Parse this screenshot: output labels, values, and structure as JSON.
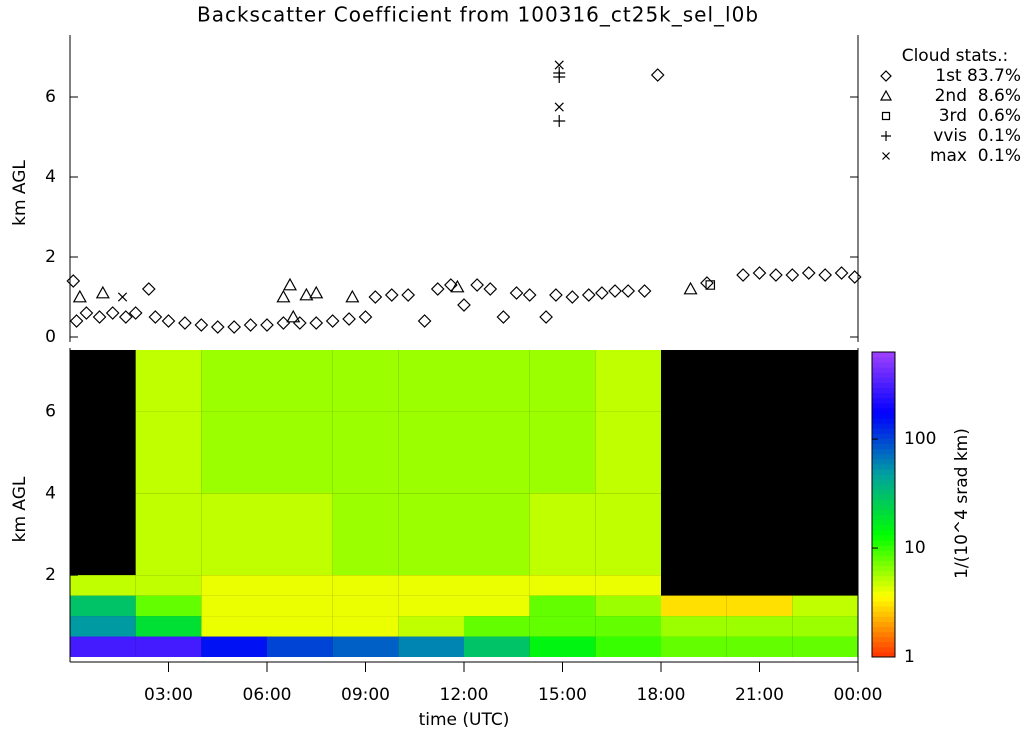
{
  "title": "Backscatter Coefficient from 100316_ct25k_sel_l0b",
  "chart_data": [
    {
      "type": "scatter",
      "ylabel": "km AGL",
      "xlim": [
        0,
        24
      ],
      "ylim": [
        0,
        7.5
      ],
      "yticks": [
        0,
        2,
        4,
        6
      ],
      "legend_title": "Cloud stats.:",
      "legend": "right",
      "series": [
        {
          "name": "1st 83.7%",
          "marker": "diamond",
          "color": "#000000",
          "x": [
            0.1,
            0.2,
            0.5,
            0.9,
            1.3,
            1.7,
            2.0,
            2.4,
            2.6,
            3.0,
            3.5,
            4.0,
            4.5,
            5.0,
            5.5,
            6.0,
            6.5,
            7.0,
            7.5,
            8.0,
            8.5,
            9.0,
            9.3,
            9.8,
            10.3,
            10.8,
            11.2,
            11.6,
            12.0,
            12.4,
            12.8,
            13.2,
            13.6,
            14.0,
            14.5,
            14.8,
            15.3,
            15.8,
            16.2,
            16.6,
            17.0,
            17.5,
            17.9,
            19.4,
            20.5,
            21.0,
            21.5,
            22.0,
            22.5,
            23.0,
            23.5,
            23.9
          ],
          "y": [
            1.4,
            0.4,
            0.6,
            0.5,
            0.6,
            0.5,
            0.6,
            1.2,
            0.5,
            0.4,
            0.35,
            0.3,
            0.25,
            0.25,
            0.3,
            0.3,
            0.35,
            0.35,
            0.35,
            0.4,
            0.45,
            0.5,
            1.0,
            1.05,
            1.05,
            0.4,
            1.2,
            1.3,
            0.8,
            1.3,
            1.2,
            0.5,
            1.1,
            1.05,
            0.5,
            1.05,
            1.0,
            1.05,
            1.1,
            1.15,
            1.15,
            1.15,
            6.55,
            1.35,
            1.55,
            1.6,
            1.55,
            1.55,
            1.6,
            1.55,
            1.6,
            1.5
          ]
        },
        {
          "name": "2nd  8.6%",
          "marker": "triangle",
          "color": "#000000",
          "x": [
            0.3,
            1.0,
            6.5,
            6.7,
            6.8,
            7.2,
            7.5,
            8.6,
            11.8,
            18.9
          ],
          "y": [
            1.0,
            1.1,
            1.0,
            1.3,
            0.5,
            1.05,
            1.1,
            1.0,
            1.25,
            1.2
          ]
        },
        {
          "name": "3rd  0.6%",
          "marker": "square",
          "color": "#000000",
          "x": [
            19.5
          ],
          "y": [
            1.3
          ]
        },
        {
          "name": "vvis  0.1%",
          "marker": "plus",
          "color": "#000000",
          "x": [
            14.9,
            14.9,
            14.9
          ],
          "y": [
            6.6,
            6.5,
            5.4
          ]
        },
        {
          "name": "max  0.1%",
          "marker": "cross",
          "color": "#000000",
          "x": [
            14.9,
            14.9,
            1.6
          ],
          "y": [
            6.8,
            5.75,
            1.0
          ]
        }
      ]
    },
    {
      "type": "heatmap",
      "ylabel": "km AGL",
      "xlabel": "time (UTC)",
      "xlim": [
        0,
        24
      ],
      "ylim": [
        0,
        7.5
      ],
      "yticks": [
        2,
        4,
        6
      ],
      "xticks": [
        {
          "value": 3,
          "label": "03:00"
        },
        {
          "value": 6,
          "label": "06:00"
        },
        {
          "value": 9,
          "label": "09:00"
        },
        {
          "value": 12,
          "label": "12:00"
        },
        {
          "value": 15,
          "label": "15:00"
        },
        {
          "value": 18,
          "label": "18:00"
        },
        {
          "value": 21,
          "label": "21:00"
        },
        {
          "value": 24,
          "label": "00:00"
        }
      ],
      "x_bins": [
        0,
        2,
        4,
        6,
        8,
        10,
        12,
        14,
        16,
        18,
        20,
        22,
        24
      ],
      "y_bins": [
        0,
        0.5,
        1,
        1.5,
        2,
        4,
        6,
        7.5
      ],
      "z": [
        [
          300,
          300,
          150,
          100,
          80,
          60,
          30,
          15,
          10,
          8,
          8,
          8
        ],
        [
          50,
          20,
          4,
          4,
          4,
          5,
          8,
          8,
          8,
          6,
          6,
          6
        ],
        [
          30,
          8,
          4,
          4,
          4,
          4,
          4,
          8,
          6,
          3,
          3,
          5
        ],
        [
          5,
          5,
          4,
          4,
          4,
          4,
          4,
          4,
          4,
          null,
          null,
          null
        ],
        [
          null,
          5,
          5,
          5,
          6,
          6,
          6,
          5,
          5,
          null,
          null,
          null
        ],
        [
          null,
          5,
          6,
          6,
          6,
          6,
          6,
          6,
          5,
          null,
          null,
          null
        ],
        [
          null,
          5,
          6,
          6,
          6,
          6,
          6,
          6,
          5,
          null,
          null,
          null
        ]
      ],
      "colorbar": {
        "label": "1/(10^4 srad km)",
        "log": true,
        "clim": [
          1,
          630
        ],
        "ticks": [
          1,
          10,
          100
        ],
        "colors": [
          "#ff3000",
          "#ffff00",
          "#00ff00",
          "#00a0a0",
          "#0000ff",
          "#a040ff"
        ]
      },
      "background": "#000000"
    }
  ]
}
